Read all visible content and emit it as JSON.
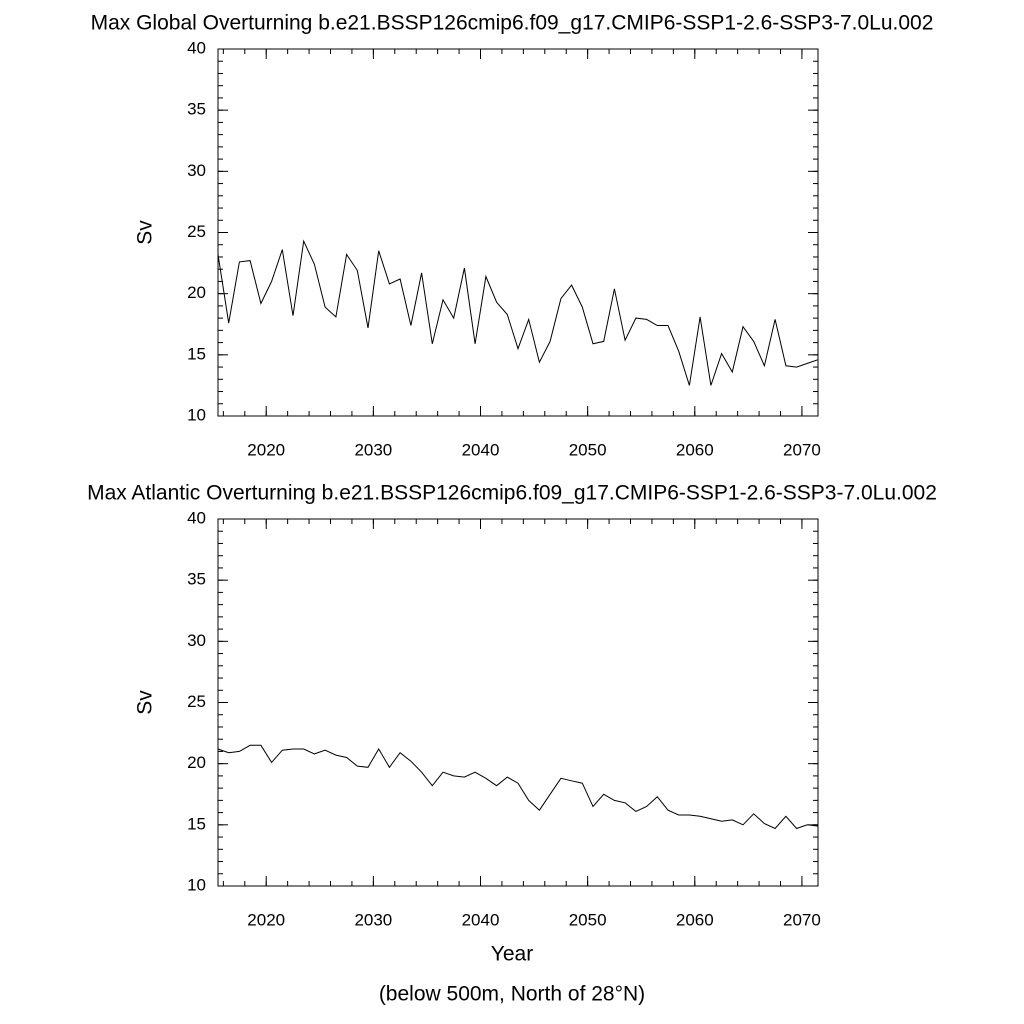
{
  "chart_data": [
    {
      "type": "line",
      "title": "Max Global Overturning b.e21.BSSP126cmip6.f09_g17.CMIP6-SSP1-2.6-SSP3-7.0Lu.002",
      "y_label": "Sv",
      "x": [
        2015.5,
        2016.5,
        2017.5,
        2018.5,
        2019.5,
        2020.5,
        2021.5,
        2022.5,
        2023.5,
        2024.5,
        2025.5,
        2026.5,
        2027.5,
        2028.5,
        2029.5,
        2030.5,
        2031.5,
        2032.5,
        2033.5,
        2034.5,
        2035.5,
        2036.5,
        2037.5,
        2038.5,
        2039.5,
        2040.5,
        2041.5,
        2042.5,
        2043.5,
        2044.5,
        2045.5,
        2046.5,
        2047.5,
        2048.5,
        2049.5,
        2050.5,
        2051.5,
        2052.5,
        2053.5,
        2054.5,
        2055.5,
        2056.5,
        2057.5,
        2058.5,
        2059.5,
        2060.5,
        2061.5,
        2062.5,
        2063.5,
        2064.5,
        2065.5,
        2066.5,
        2067.5,
        2068.5,
        2069.5,
        2070.5,
        2071.5
      ],
      "series": [
        {
          "color": "#000000",
          "values": [
            23.2,
            17.6,
            22.6,
            22.7,
            19.2,
            21.0,
            23.6,
            18.2,
            24.3,
            22.4,
            18.9,
            18.1,
            23.2,
            21.9,
            17.2,
            23.5,
            20.8,
            21.2,
            17.4,
            21.7,
            15.9,
            19.5,
            18.0,
            22.1,
            15.9,
            21.4,
            19.3,
            18.3,
            15.5,
            17.9,
            14.4,
            16.1,
            19.6,
            20.7,
            18.9,
            15.9,
            16.1,
            20.4,
            16.2,
            18.0,
            17.9,
            17.4,
            17.4,
            15.3,
            12.5,
            18.1,
            12.5,
            15.1,
            13.6,
            17.3,
            16.1,
            14.1,
            17.9,
            14.1,
            14.0,
            14.3,
            14.6
          ]
        }
      ],
      "xlim": [
        2015.5,
        2071.5
      ],
      "xticks": [
        2020,
        2030,
        2040,
        2050,
        2060,
        2070
      ],
      "ylim": [
        10,
        40
      ],
      "yticks": [
        10,
        15,
        20,
        25,
        30,
        35,
        40
      ]
    },
    {
      "type": "line",
      "title": "Max Atlantic Overturning b.e21.BSSP126cmip6.f09_g17.CMIP6-SSP1-2.6-SSP3-7.0Lu.002",
      "y_label": "Sv",
      "x_label": "Year",
      "annotation": "(below 500m, North of 28°N)",
      "x": [
        2015.5,
        2016.5,
        2017.5,
        2018.5,
        2019.5,
        2020.5,
        2021.5,
        2022.5,
        2023.5,
        2024.5,
        2025.5,
        2026.5,
        2027.5,
        2028.5,
        2029.5,
        2030.5,
        2031.5,
        2032.5,
        2033.5,
        2034.5,
        2035.5,
        2036.5,
        2037.5,
        2038.5,
        2039.5,
        2040.5,
        2041.5,
        2042.5,
        2043.5,
        2044.5,
        2045.5,
        2046.5,
        2047.5,
        2048.5,
        2049.5,
        2050.5,
        2051.5,
        2052.5,
        2053.5,
        2054.5,
        2055.5,
        2056.5,
        2057.5,
        2058.5,
        2059.5,
        2060.5,
        2061.5,
        2062.5,
        2063.5,
        2064.5,
        2065.5,
        2066.5,
        2067.5,
        2068.5,
        2069.5,
        2070.5,
        2071.5
      ],
      "series": [
        {
          "color": "#000000",
          "values": [
            21.2,
            20.9,
            21.0,
            21.5,
            21.5,
            20.1,
            21.1,
            21.2,
            21.2,
            20.8,
            21.1,
            20.7,
            20.5,
            19.8,
            19.7,
            21.2,
            19.7,
            20.9,
            20.2,
            19.3,
            18.2,
            19.3,
            19.0,
            18.9,
            19.3,
            18.8,
            18.2,
            18.9,
            18.4,
            17.0,
            16.2,
            17.5,
            18.8,
            18.6,
            18.4,
            16.5,
            17.5,
            17.0,
            16.8,
            16.1,
            16.5,
            17.3,
            16.2,
            15.8,
            15.8,
            15.7,
            15.5,
            15.3,
            15.4,
            15.0,
            15.9,
            15.1,
            14.7,
            15.7,
            14.7,
            15.0,
            14.9
          ]
        }
      ],
      "xlim": [
        2015.5,
        2071.5
      ],
      "xticks": [
        2020,
        2030,
        2040,
        2050,
        2060,
        2070
      ],
      "ylim": [
        10,
        40
      ],
      "yticks": [
        10,
        15,
        20,
        25,
        30,
        35,
        40
      ]
    }
  ]
}
